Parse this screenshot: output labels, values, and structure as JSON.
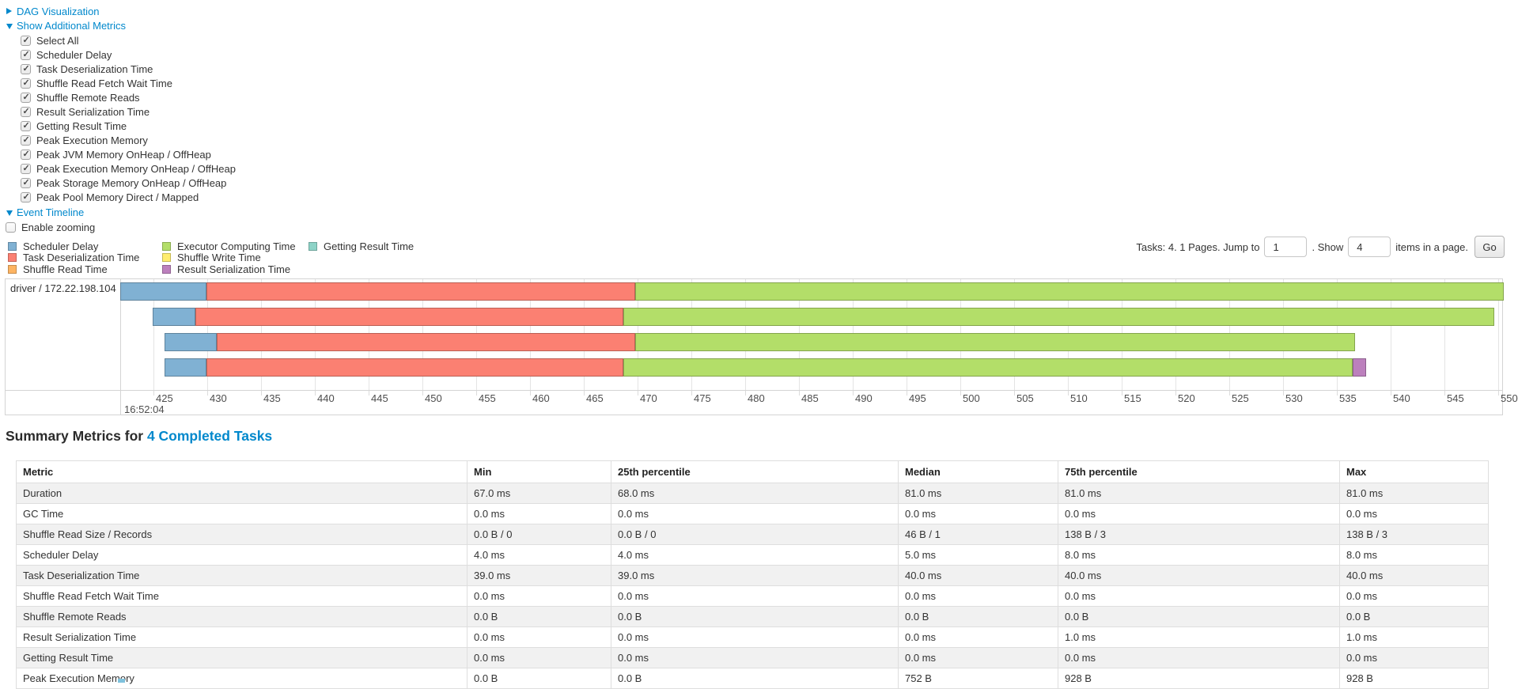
{
  "controls": {
    "dag_label": "DAG Visualization",
    "metrics_label": "Show Additional Metrics",
    "metric_checkboxes": [
      {
        "label": "Select All",
        "checked": true
      },
      {
        "label": "Scheduler Delay",
        "checked": true
      },
      {
        "label": "Task Deserialization Time",
        "checked": true
      },
      {
        "label": "Shuffle Read Fetch Wait Time",
        "checked": true
      },
      {
        "label": "Shuffle Remote Reads",
        "checked": true
      },
      {
        "label": "Result Serialization Time",
        "checked": true
      },
      {
        "label": "Getting Result Time",
        "checked": true
      },
      {
        "label": "Peak Execution Memory",
        "checked": true
      },
      {
        "label": "Peak JVM Memory OnHeap / OffHeap",
        "checked": true
      },
      {
        "label": "Peak Execution Memory OnHeap / OffHeap",
        "checked": true
      },
      {
        "label": "Peak Storage Memory OnHeap / OffHeap",
        "checked": true
      },
      {
        "label": "Peak Pool Memory Direct / Mapped",
        "checked": true
      }
    ],
    "event_timeline_label": "Event Timeline",
    "enable_zooming": {
      "label": "Enable zooming",
      "checked": false
    }
  },
  "legend": {
    "columns": [
      [
        {
          "key": "scheduler_delay",
          "label": "Scheduler Delay"
        },
        {
          "key": "task_deserialization",
          "label": "Task Deserialization Time"
        },
        {
          "key": "shuffle_read",
          "label": "Shuffle Read Time"
        }
      ],
      [
        {
          "key": "executor_computing",
          "label": "Executor Computing Time"
        },
        {
          "key": "shuffle_write",
          "label": "Shuffle Write Time"
        },
        {
          "key": "result_serialization",
          "label": "Result Serialization Time"
        }
      ],
      [
        {
          "key": "getting_result",
          "label": "Getting Result Time"
        }
      ]
    ]
  },
  "colors": {
    "scheduler_delay": "#80B1D3",
    "task_deserialization": "#FB8072",
    "shuffle_read": "#FDB462",
    "executor_computing": "#B3DE69",
    "shuffle_write": "#FFED6F",
    "result_serialization": "#BC80BD",
    "getting_result": "#8DD3C7",
    "link": "#0088cc"
  },
  "pagination": {
    "tasks_text": "Tasks: 4. 1 Pages. Jump to",
    "jump_value": "1",
    "show_text": ". Show",
    "show_value": "4",
    "items_text": "items in a page.",
    "go_label": "Go"
  },
  "chart_data": {
    "type": "timeline",
    "executor_label": "driver / 172.22.198.104",
    "axis": {
      "min": 421.9,
      "max": 550.3,
      "tick_start": 425,
      "tick_end": 550,
      "tick_step": 5,
      "major_label": "16:52:04",
      "unit": "ms within second 16:52:04"
    },
    "tasks": [
      {
        "segments": [
          {
            "key": "scheduler_delay",
            "start": 421.9,
            "end": 429.9
          },
          {
            "key": "task_deserialization",
            "start": 429.9,
            "end": 469.8
          },
          {
            "key": "executor_computing",
            "start": 469.8,
            "end": 550.5
          }
        ]
      },
      {
        "segments": [
          {
            "key": "scheduler_delay",
            "start": 424.9,
            "end": 428.9
          },
          {
            "key": "task_deserialization",
            "start": 428.9,
            "end": 468.7
          },
          {
            "key": "executor_computing",
            "start": 468.7,
            "end": 549.6
          }
        ]
      },
      {
        "segments": [
          {
            "key": "scheduler_delay",
            "start": 426.0,
            "end": 430.9
          },
          {
            "key": "task_deserialization",
            "start": 430.9,
            "end": 469.8
          },
          {
            "key": "executor_computing",
            "start": 469.8,
            "end": 536.7
          }
        ]
      },
      {
        "segments": [
          {
            "key": "scheduler_delay",
            "start": 426.0,
            "end": 429.9
          },
          {
            "key": "task_deserialization",
            "start": 429.9,
            "end": 468.7
          },
          {
            "key": "executor_computing",
            "start": 468.7,
            "end": 536.5
          },
          {
            "key": "result_serialization",
            "start": 536.5,
            "end": 537.7
          }
        ]
      }
    ]
  },
  "summary": {
    "heading_text": "Summary Metrics for ",
    "heading_link": "4 Completed Tasks",
    "columns": [
      "Metric",
      "Min",
      "25th percentile",
      "Median",
      "75th percentile",
      "Max"
    ],
    "rows": [
      [
        "Duration",
        "67.0 ms",
        "68.0 ms",
        "81.0 ms",
        "81.0 ms",
        "81.0 ms"
      ],
      [
        "GC Time",
        "0.0 ms",
        "0.0 ms",
        "0.0 ms",
        "0.0 ms",
        "0.0 ms"
      ],
      [
        "Shuffle Read Size / Records",
        "0.0 B / 0",
        "0.0 B / 0",
        "46 B / 1",
        "138 B / 3",
        "138 B / 3"
      ],
      [
        "Scheduler Delay",
        "4.0 ms",
        "4.0 ms",
        "5.0 ms",
        "8.0 ms",
        "8.0 ms"
      ],
      [
        "Task Deserialization Time",
        "39.0 ms",
        "39.0 ms",
        "40.0 ms",
        "40.0 ms",
        "40.0 ms"
      ],
      [
        "Shuffle Read Fetch Wait Time",
        "0.0 ms",
        "0.0 ms",
        "0.0 ms",
        "0.0 ms",
        "0.0 ms"
      ],
      [
        "Shuffle Remote Reads",
        "0.0 B",
        "0.0 B",
        "0.0 B",
        "0.0 B",
        "0.0 B"
      ],
      [
        "Result Serialization Time",
        "0.0 ms",
        "0.0 ms",
        "0.0 ms",
        "1.0 ms",
        "1.0 ms"
      ],
      [
        "Getting Result Time",
        "0.0 ms",
        "0.0 ms",
        "0.0 ms",
        "0.0 ms",
        "0.0 ms"
      ],
      [
        "Peak Execution Memory",
        "0.0 B",
        "0.0 B",
        "752 B",
        "928 B",
        "928 B"
      ]
    ]
  }
}
